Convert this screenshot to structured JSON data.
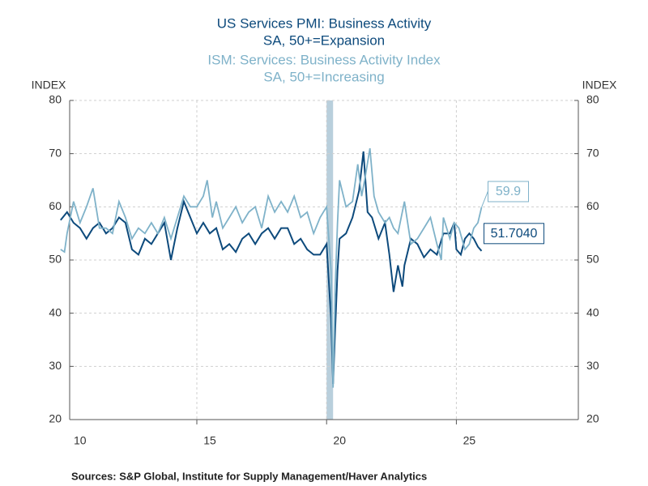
{
  "chart_data": {
    "type": "line",
    "series": [
      {
        "name": "US Services PMI: Business Activity",
        "subtitle": "SA, 50+=Expansion",
        "color": "#0d4a7c",
        "axis": "y",
        "last_label": "51.7040",
        "x": [
          2009.75,
          2010.0,
          2010.25,
          2010.5,
          2010.75,
          2011.0,
          2011.25,
          2011.5,
          2011.75,
          2012.0,
          2012.25,
          2012.5,
          2012.75,
          2013.0,
          2013.25,
          2013.5,
          2013.75,
          2014.0,
          2014.25,
          2014.5,
          2014.75,
          2015.0,
          2015.25,
          2015.5,
          2015.75,
          2016.0,
          2016.25,
          2016.5,
          2016.75,
          2017.0,
          2017.25,
          2017.5,
          2017.75,
          2018.0,
          2018.25,
          2018.5,
          2018.75,
          2019.0,
          2019.25,
          2019.5,
          2019.75,
          2020.0,
          2020.17,
          2020.25,
          2020.33,
          2020.42,
          2020.5,
          2020.75,
          2021.0,
          2021.25,
          2021.42,
          2021.58,
          2021.75,
          2022.0,
          2022.25,
          2022.42,
          2022.58,
          2022.75,
          2022.92,
          2023.0,
          2023.25,
          2023.5,
          2023.75,
          2024.0,
          2024.25,
          2024.5,
          2024.75,
          2024.92,
          2025.0,
          2025.17,
          2025.33,
          2025.5,
          2025.67,
          2025.83,
          2025.97
        ],
        "values": [
          57.5,
          59,
          57,
          56,
          54,
          56,
          57,
          55,
          56,
          58,
          57,
          52,
          51,
          54,
          53,
          55,
          57,
          50,
          56,
          61,
          58,
          55,
          57,
          55,
          56,
          52,
          53,
          51.5,
          54,
          55,
          53,
          55,
          56,
          54,
          56,
          56,
          53,
          54,
          52,
          51,
          51,
          53,
          39,
          26.7,
          37,
          48,
          54,
          55,
          58,
          63,
          70.4,
          59,
          58,
          54,
          57,
          51,
          44,
          49,
          45,
          49,
          54,
          53,
          50.5,
          52,
          51,
          55,
          55,
          57,
          52,
          51,
          54,
          55,
          54,
          52.5,
          51.704
        ]
      },
      {
        "name": "ISM: Services: Business Activity Index",
        "subtitle": "SA, 50+=Increasing",
        "color": "#7fb2c9",
        "axis": "y2",
        "last_label": "59.9",
        "x": [
          2009.75,
          2009.9,
          2010.0,
          2010.25,
          2010.5,
          2010.75,
          2011.0,
          2011.25,
          2011.5,
          2011.75,
          2012.0,
          2012.25,
          2012.5,
          2012.75,
          2013.0,
          2013.25,
          2013.5,
          2013.75,
          2014.0,
          2014.25,
          2014.5,
          2014.75,
          2015.0,
          2015.25,
          2015.4,
          2015.6,
          2015.75,
          2016.0,
          2016.25,
          2016.5,
          2016.75,
          2017.0,
          2017.25,
          2017.5,
          2017.75,
          2018.0,
          2018.25,
          2018.5,
          2018.75,
          2019.0,
          2019.25,
          2019.5,
          2019.75,
          2020.0,
          2020.17,
          2020.25,
          2020.33,
          2020.42,
          2020.5,
          2020.75,
          2021.0,
          2021.2,
          2021.35,
          2021.5,
          2021.67,
          2021.83,
          2022.0,
          2022.25,
          2022.42,
          2022.58,
          2022.75,
          2023.0,
          2023.25,
          2023.5,
          2023.75,
          2024.0,
          2024.25,
          2024.42,
          2024.5,
          2024.75,
          2024.92,
          2025.1,
          2025.33,
          2025.5,
          2025.67,
          2025.83,
          2025.97
        ],
        "values": [
          52,
          51.5,
          55,
          61,
          57,
          60,
          63.5,
          56,
          56,
          55,
          61,
          58,
          54,
          56,
          55,
          57,
          55,
          58,
          54,
          58,
          62,
          60,
          60,
          62,
          65,
          58,
          61,
          56,
          58,
          60,
          57,
          59,
          60,
          56,
          62,
          59,
          61,
          59,
          62,
          58,
          59,
          55,
          58,
          60,
          48,
          26,
          45,
          57,
          65,
          60,
          61,
          68,
          62,
          66,
          71,
          62,
          59,
          57,
          58,
          56,
          55,
          61,
          53,
          54,
          56,
          58,
          53,
          50,
          58,
          54,
          57,
          56,
          52,
          53,
          56,
          57,
          59.9
        ]
      }
    ],
    "shade_x": [
      2020.0,
      2020.25
    ],
    "xlim": [
      2010.1,
      2029.7
    ],
    "xticks": [
      {
        "value": 2010,
        "label": "10"
      },
      {
        "value": 2015,
        "label": "15"
      },
      {
        "value": 2020,
        "label": "20"
      },
      {
        "value": 2025,
        "label": "25"
      }
    ],
    "ylim": [
      20,
      80
    ],
    "yticks": [
      20,
      30,
      40,
      50,
      60,
      70,
      80
    ],
    "y2lim": [
      20,
      80
    ],
    "y2ticks": [
      20,
      30,
      40,
      50,
      60,
      70,
      80
    ],
    "ylabel": "INDEX",
    "y2label": "INDEX",
    "grid": true,
    "source": "Sources:  S&P Global, Institute for Supply Management/Haver Analytics"
  }
}
